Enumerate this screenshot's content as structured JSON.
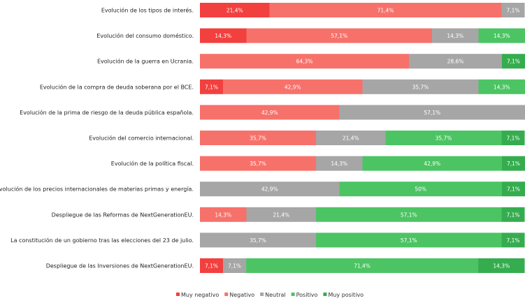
{
  "chart_data": {
    "type": "bar",
    "orientation": "horizontal",
    "stacked": true,
    "percent_stacked": true,
    "xlim": [
      0,
      100
    ],
    "grid": false,
    "legend_position": "bottom",
    "categories": [
      "Evolución de los tipos de interés.",
      "Evolución del consumo doméstico.",
      "Evolución de la guerra en Ucrania.",
      "Evolución de la compra de deuda soberana por el BCE.",
      "Evolución de la prima de riesgo de la deuda pública española.",
      "Evolución del comercio internacional.",
      "Evolución de la política fiscal.",
      "Evolución de los precios internacionales de materias primas y energía.",
      "Despliegue de las Reformas de NextGenerationEU.",
      "La constitución de un gobierno tras las elecciones del 23 de julio.",
      "Despliegue de las Inversiones de NextGenerationEU."
    ],
    "series": [
      {
        "name": "Muy negativo",
        "color": "#f2403f",
        "values": [
          21.4,
          14.3,
          0,
          7.1,
          0,
          0,
          0,
          0,
          0,
          0,
          7.1
        ],
        "labels": [
          "21,4%",
          "14,3%",
          "",
          "7,1%",
          "",
          "",
          "",
          "",
          "",
          "",
          "7,1%"
        ]
      },
      {
        "name": "Negativo",
        "color": "#f7716b",
        "values": [
          71.4,
          57.1,
          64.3,
          42.9,
          42.9,
          35.7,
          35.7,
          0,
          14.3,
          0,
          0
        ],
        "labels": [
          "71,4%",
          "57,1%",
          "64,3%",
          "42,9%",
          "42,9%",
          "35,7%",
          "35,7%",
          "",
          "14,3%",
          "",
          ""
        ]
      },
      {
        "name": "Neutral",
        "color": "#a6a6a6",
        "values": [
          7.1,
          14.3,
          28.6,
          35.7,
          57.1,
          21.4,
          14.3,
          42.9,
          21.4,
          35.7,
          7.1
        ],
        "labels": [
          "7,1%",
          "14,3%",
          "28,6%",
          "35,7%",
          "57,1%",
          "21,4%",
          "14,3%",
          "42,9%",
          "21,4%",
          "35,7%",
          "7,1%"
        ]
      },
      {
        "name": "Positivo",
        "color": "#4cc463",
        "values": [
          0,
          14.3,
          0,
          14.3,
          0,
          35.7,
          42.9,
          50,
          57.1,
          57.1,
          71.4
        ],
        "labels": [
          "",
          "14,3%",
          "",
          "14,3%",
          "",
          "35,7%",
          "42,9%",
          "50%",
          "57,1%",
          "57,1%",
          "71,4%"
        ]
      },
      {
        "name": "Muy positivo",
        "color": "#35ad4f",
        "values": [
          0,
          0,
          7.1,
          0,
          0,
          7.1,
          7.1,
          7.1,
          7.1,
          7.1,
          14.3
        ],
        "labels": [
          "",
          "",
          "7,1%",
          "",
          "",
          "7,1%",
          "7,1%",
          "7,1%",
          "7,1%",
          "7,1%",
          "14,3%"
        ]
      }
    ]
  }
}
